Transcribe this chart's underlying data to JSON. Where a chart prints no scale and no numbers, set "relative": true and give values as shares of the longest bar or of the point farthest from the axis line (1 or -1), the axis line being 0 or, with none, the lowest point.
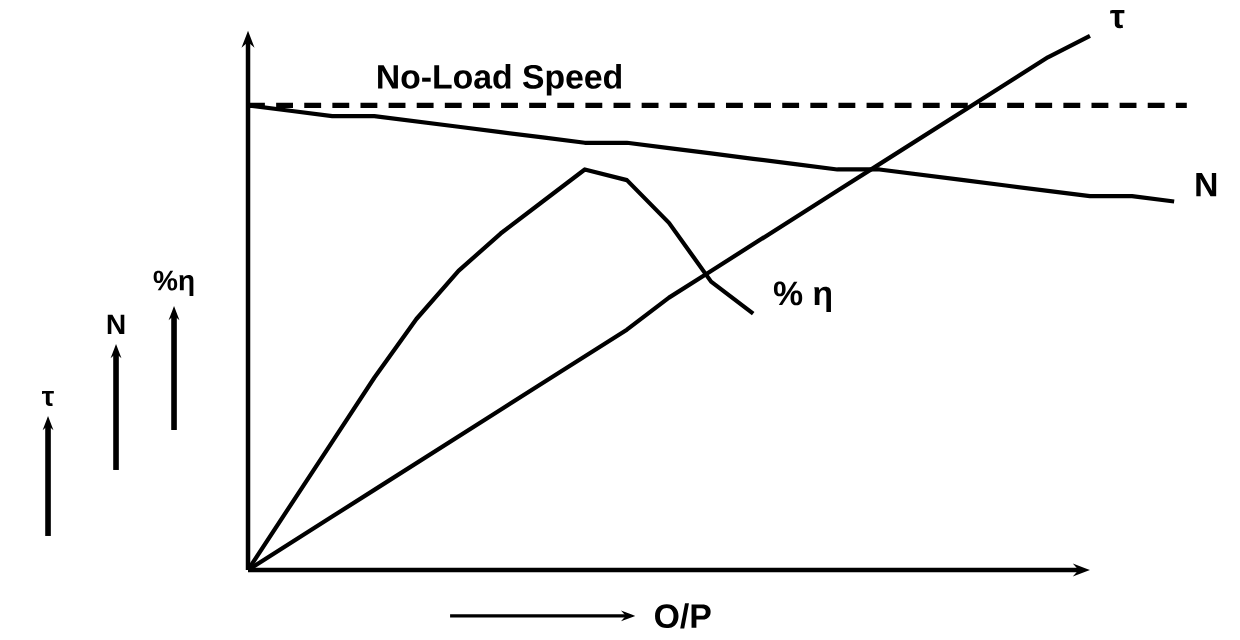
{
  "chart_data": {
    "type": "line",
    "relative": true,
    "xlabel": "O/P",
    "marker": "none",
    "line_style": "solid",
    "annotations": [
      "τ",
      "N",
      "%η"
    ],
    "categories": [
      null,
      null,
      null,
      null,
      null,
      null,
      null,
      null,
      null,
      null,
      null,
      null,
      null,
      null,
      null,
      null,
      null,
      null,
      null,
      null,
      null,
      null,
      null
    ],
    "series": [
      {
        "name": "N",
        "color": "#000000",
        "values": [
          0.87,
          0.86,
          0.85,
          0.85,
          0.84,
          0.83,
          0.82,
          0.81,
          0.8,
          0.8,
          0.79,
          0.78,
          0.77,
          0.76,
          0.75,
          0.75,
          0.74,
          0.73,
          0.72,
          0.71,
          0.7,
          0.7,
          0.69
        ]
      },
      {
        "name": "% η",
        "color": "#000000",
        "values": [
          0,
          0.12,
          0.24,
          0.36,
          0.47,
          0.56,
          0.63,
          0.69,
          0.75,
          0.73,
          0.65,
          0.54,
          0.48,
          null,
          null,
          null,
          null,
          null,
          null,
          null,
          null,
          null,
          null
        ]
      },
      {
        "name": "τ",
        "color": "#000000",
        "values": [
          0,
          0.05,
          0.1,
          0.15,
          0.2,
          0.25,
          0.3,
          0.35,
          0.4,
          0.45,
          0.51,
          0.56,
          0.61,
          0.66,
          0.71,
          0.76,
          0.81,
          0.86,
          0.91,
          0.96,
          1.0,
          null,
          null
        ]
      }
    ],
    "ref_lines": [
      {
        "axis": "y",
        "value": 0.87,
        "label": "No-Load Speed",
        "line_style": "dashed"
      }
    ]
  }
}
